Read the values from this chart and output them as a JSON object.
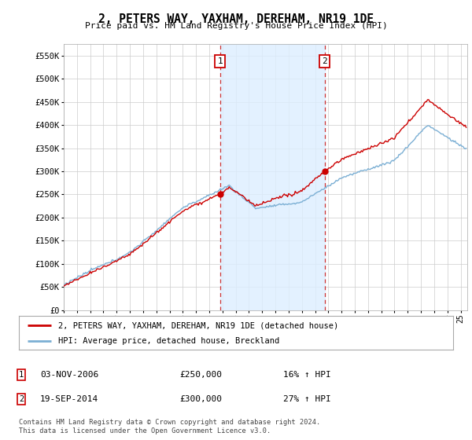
{
  "title": "2, PETERS WAY, YAXHAM, DEREHAM, NR19 1DE",
  "subtitle": "Price paid vs. HM Land Registry's House Price Index (HPI)",
  "legend_line1": "2, PETERS WAY, YAXHAM, DEREHAM, NR19 1DE (detached house)",
  "legend_line2": "HPI: Average price, detached house, Breckland",
  "sale1_date": "03-NOV-2006",
  "sale1_price": "£250,000",
  "sale1_hpi": "16% ↑ HPI",
  "sale1_year": 2006.83,
  "sale1_value": 250000,
  "sale2_date": "19-SEP-2014",
  "sale2_price": "£300,000",
  "sale2_hpi": "27% ↑ HPI",
  "sale2_year": 2014.71,
  "sale2_value": 300000,
  "footer": "Contains HM Land Registry data © Crown copyright and database right 2024.\nThis data is licensed under the Open Government Licence v3.0.",
  "red_color": "#cc0000",
  "blue_color": "#7bafd4",
  "dashed_color": "#cc3333",
  "shaded_color": "#ddeeff",
  "background_color": "#ffffff",
  "grid_color": "#cccccc",
  "ylim": [
    0,
    575000
  ],
  "yticks": [
    0,
    50000,
    100000,
    150000,
    200000,
    250000,
    300000,
    350000,
    400000,
    450000,
    500000,
    550000
  ],
  "xmin": 1995.0,
  "xmax": 2025.5
}
